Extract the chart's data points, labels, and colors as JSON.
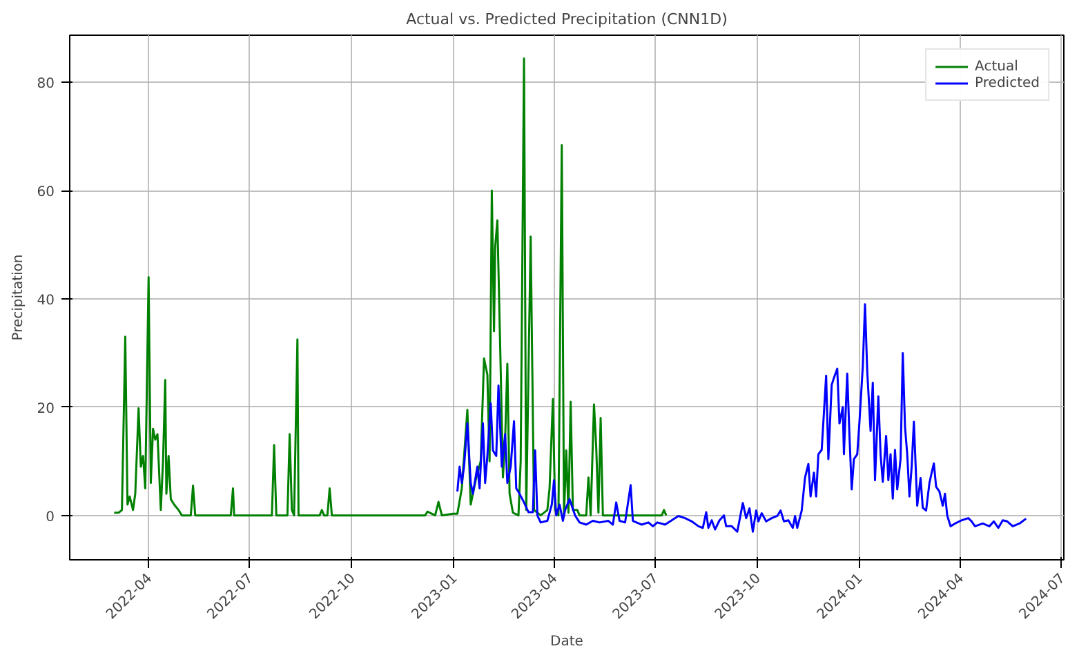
{
  "chart_data": {
    "type": "line",
    "title": "Actual vs. Predicted Precipitation (CNN1D)",
    "xlabel": "Date",
    "ylabel": "Precipitation",
    "xlim": [
      "2022-01-20",
      "2024-07-03"
    ],
    "ylim": [
      -8.2,
      88.7
    ],
    "xticks": [
      {
        "value": "2022-04-01",
        "label": "2022-04"
      },
      {
        "value": "2022-07-01",
        "label": "2022-07"
      },
      {
        "value": "2022-10-01",
        "label": "2022-10"
      },
      {
        "value": "2023-01-01",
        "label": "2023-01"
      },
      {
        "value": "2023-04-01",
        "label": "2023-04"
      },
      {
        "value": "2023-07-01",
        "label": "2023-07"
      },
      {
        "value": "2023-10-01",
        "label": "2023-10"
      },
      {
        "value": "2024-01-01",
        "label": "2024-01"
      },
      {
        "value": "2024-04-01",
        "label": "2024-04"
      },
      {
        "value": "2024-07-01",
        "label": "2024-07"
      }
    ],
    "yticks": [
      0,
      20,
      40,
      60,
      80
    ],
    "grid": true,
    "legend": "top right",
    "line_style": "solid",
    "series": [
      {
        "name": "Actual",
        "color": "#008000",
        "x": [
          "2022-03-01",
          "2022-03-05",
          "2022-03-08",
          "2022-03-11",
          "2022-03-13",
          "2022-03-15",
          "2022-03-18",
          "2022-03-20",
          "2022-03-23",
          "2022-03-25",
          "2022-03-27",
          "2022-03-29",
          "2022-04-01",
          "2022-04-03",
          "2022-04-05",
          "2022-04-07",
          "2022-04-09",
          "2022-04-12",
          "2022-04-14",
          "2022-04-16",
          "2022-04-17",
          "2022-04-19",
          "2022-04-21",
          "2022-04-24",
          "2022-04-28",
          "2022-05-01",
          "2022-05-09",
          "2022-05-11",
          "2022-05-13",
          "2022-06-14",
          "2022-06-16",
          "2022-06-17",
          "2022-07-21",
          "2022-07-23",
          "2022-07-25",
          "2022-08-04",
          "2022-08-06",
          "2022-08-08",
          "2022-08-10",
          "2022-08-13",
          "2022-08-14",
          "2022-09-02",
          "2022-09-04",
          "2022-09-06",
          "2022-09-09",
          "2022-09-11",
          "2022-09-13",
          "2022-12-06",
          "2022-12-08",
          "2022-12-15",
          "2022-12-18",
          "2022-12-21",
          "2022-12-31",
          "2023-01-04",
          "2023-01-08",
          "2023-01-13",
          "2023-01-16",
          "2023-01-21",
          "2023-01-25",
          "2023-01-28",
          "2023-01-31",
          "2023-02-02",
          "2023-02-04",
          "2023-02-06",
          "2023-02-07",
          "2023-02-09",
          "2023-02-12",
          "2023-02-14",
          "2023-02-16",
          "2023-02-18",
          "2023-02-20",
          "2023-02-23",
          "2023-02-28",
          "2023-03-02",
          "2023-03-05",
          "2023-03-07",
          "2023-03-11",
          "2023-03-14",
          "2023-03-20",
          "2023-03-26",
          "2023-03-28",
          "2023-03-31",
          "2023-04-02",
          "2023-04-05",
          "2023-04-08",
          "2023-04-10",
          "2023-04-12",
          "2023-04-14",
          "2023-04-16",
          "2023-04-18",
          "2023-04-22",
          "2023-04-24",
          "2023-04-30",
          "2023-05-02",
          "2023-05-04",
          "2023-05-07",
          "2023-05-09",
          "2023-05-11",
          "2023-05-13",
          "2023-05-15",
          "2023-07-07",
          "2023-07-09",
          "2023-07-11"
        ],
        "values": [
          0.5,
          0.5,
          1,
          33,
          2,
          3.5,
          1,
          4,
          19.8,
          9,
          11,
          5,
          44,
          6,
          16,
          14,
          15,
          1,
          10,
          25,
          4,
          11,
          3,
          2,
          1,
          0,
          0,
          5.5,
          0,
          0,
          5,
          0,
          0,
          13,
          0,
          0,
          15,
          1,
          0,
          32.5,
          0,
          0,
          1,
          0,
          0,
          5,
          0,
          0,
          0.7,
          0,
          2.5,
          0,
          0.3,
          0.3,
          5,
          19.5,
          2,
          7,
          10,
          29,
          26,
          10,
          60,
          34,
          49.5,
          54.5,
          27,
          7,
          14,
          28,
          4,
          0.5,
          0,
          10,
          84.4,
          1,
          51.5,
          1,
          0,
          1,
          5,
          21.5,
          1,
          0,
          68.4,
          0,
          12,
          0.5,
          21,
          1,
          1,
          0,
          0,
          7,
          0,
          20.5,
          12.6,
          0.5,
          18,
          0,
          0,
          1,
          0
        ]
      },
      {
        "name": "Predicted",
        "color": "#0000ff",
        "x": [
          "2023-01-04",
          "2023-01-06",
          "2023-01-08",
          "2023-01-10",
          "2023-01-13",
          "2023-01-16",
          "2023-01-18",
          "2023-01-22",
          "2023-01-24",
          "2023-01-27",
          "2023-01-29",
          "2023-01-31",
          "2023-02-03",
          "2023-02-05",
          "2023-02-08",
          "2023-02-10",
          "2023-02-13",
          "2023-02-16",
          "2023-02-18",
          "2023-02-21",
          "2023-02-24",
          "2023-02-26",
          "2023-03-01",
          "2023-03-05",
          "2023-03-09",
          "2023-03-13",
          "2023-03-15",
          "2023-03-17",
          "2023-03-20",
          "2023-03-26",
          "2023-03-30",
          "2023-04-01",
          "2023-04-03",
          "2023-04-06",
          "2023-04-09",
          "2023-04-11",
          "2023-04-15",
          "2023-04-20",
          "2023-04-24",
          "2023-04-30",
          "2023-05-06",
          "2023-05-12",
          "2023-05-20",
          "2023-05-24",
          "2023-05-27",
          "2023-05-30",
          "2023-06-04",
          "2023-06-09",
          "2023-06-11",
          "2023-06-19",
          "2023-06-25",
          "2023-06-29",
          "2023-07-03",
          "2023-07-10",
          "2023-07-16",
          "2023-07-22",
          "2023-07-28",
          "2023-08-03",
          "2023-08-09",
          "2023-08-13",
          "2023-08-16",
          "2023-08-18",
          "2023-08-21",
          "2023-08-24",
          "2023-08-28",
          "2023-09-01",
          "2023-09-03",
          "2023-09-08",
          "2023-09-13",
          "2023-09-15",
          "2023-09-18",
          "2023-09-21",
          "2023-09-24",
          "2023-09-27",
          "2023-09-30",
          "2023-10-02",
          "2023-10-05",
          "2023-10-09",
          "2023-10-14",
          "2023-10-19",
          "2023-10-22",
          "2023-10-25",
          "2023-10-29",
          "2023-11-02",
          "2023-11-04",
          "2023-11-06",
          "2023-11-10",
          "2023-11-13",
          "2023-11-16",
          "2023-11-18",
          "2023-11-21",
          "2023-11-23",
          "2023-11-25",
          "2023-11-28",
          "2023-12-02",
          "2023-12-04",
          "2023-12-07",
          "2023-12-09",
          "2023-12-12",
          "2023-12-14",
          "2023-12-17",
          "2023-12-18",
          "2023-12-21",
          "2023-12-23",
          "2023-12-25",
          "2023-12-27",
          "2023-12-30",
          "2024-01-01",
          "2024-01-04",
          "2024-01-06",
          "2024-01-08",
          "2024-01-11",
          "2024-01-13",
          "2024-01-15",
          "2024-01-18",
          "2024-01-20",
          "2024-01-22",
          "2024-01-25",
          "2024-01-27",
          "2024-01-29",
          "2024-01-31",
          "2024-02-02",
          "2024-02-04",
          "2024-02-07",
          "2024-02-09",
          "2024-02-11",
          "2024-02-13",
          "2024-02-15",
          "2024-02-17",
          "2024-02-19",
          "2024-02-22",
          "2024-02-25",
          "2024-02-27",
          "2024-03-01",
          "2024-03-04",
          "2024-03-06",
          "2024-03-08",
          "2024-03-10",
          "2024-03-13",
          "2024-03-16",
          "2024-03-18",
          "2024-03-20",
          "2024-03-23",
          "2024-03-27",
          "2024-04-02",
          "2024-04-08",
          "2024-04-11",
          "2024-04-14",
          "2024-04-21",
          "2024-04-27",
          "2024-05-01",
          "2024-05-05",
          "2024-05-09",
          "2024-05-13",
          "2024-05-18",
          "2024-05-24",
          "2024-05-30"
        ],
        "values": [
          4.4,
          9,
          6,
          9,
          17,
          6,
          4,
          9,
          5,
          17,
          6,
          11,
          20.7,
          12,
          11,
          24,
          9,
          15,
          6,
          9,
          17.4,
          5,
          4,
          2.4,
          0.6,
          0.6,
          12,
          0,
          -1.3,
          -1,
          2,
          6.5,
          0,
          2,
          -1,
          1,
          3,
          0,
          -1.3,
          -1.7,
          -1,
          -1.3,
          -1,
          -1.7,
          2.4,
          -1,
          -1.3,
          5.6,
          -1,
          -1.7,
          -1.3,
          -2,
          -1.3,
          -1.7,
          -0.9,
          -0.1,
          -0.5,
          -1.1,
          -2,
          -2.3,
          0.6,
          -2.3,
          -0.9,
          -2.6,
          -0.9,
          0,
          -2,
          -2,
          -3,
          -0.9,
          2.3,
          -0.5,
          1.3,
          -3,
          0.9,
          -1.1,
          0.4,
          -1.1,
          -0.5,
          -0.1,
          0.9,
          -1.1,
          -0.9,
          -2.3,
          -0.1,
          -2.3,
          0.9,
          7,
          9.5,
          3.5,
          7.9,
          3.5,
          11.3,
          12.1,
          25.8,
          10.4,
          24.1,
          25.4,
          27.1,
          17,
          20,
          11.3,
          26.2,
          14.7,
          4.8,
          10.4,
          11.3,
          17.3,
          27.5,
          39,
          26.6,
          15.6,
          24.5,
          6.5,
          22,
          11.3,
          6.2,
          14.7,
          6.5,
          11.3,
          3.1,
          12.1,
          4.8,
          10.4,
          30,
          16.4,
          11.3,
          3.5,
          9,
          17.3,
          1.8,
          6.9,
          1.4,
          0.9,
          6,
          7.9,
          9.6,
          5.3,
          4.4,
          1.8,
          4,
          0,
          -2,
          -1.5,
          -0.9,
          -0.5,
          -1.1,
          -2,
          -1.5,
          -2,
          -1.1,
          -2.3,
          -0.9,
          -1.1,
          -2,
          -1.5,
          -0.6
        ]
      }
    ]
  }
}
